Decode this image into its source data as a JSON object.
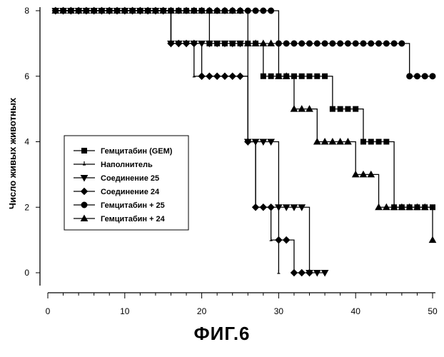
{
  "figure_caption": "ФИГ.6",
  "chart_data": {
    "type": "line",
    "ylabel": "Число живых животных",
    "xlabel": "",
    "xlim": [
      0,
      50
    ],
    "ylim": [
      0,
      8
    ],
    "x_ticks": [
      0,
      10,
      20,
      30,
      40,
      50
    ],
    "y_ticks": [
      0,
      2,
      4,
      6,
      8
    ],
    "grid": false,
    "legend_position": "middle-left",
    "series": [
      {
        "name": "Гемцитабин (GEM)",
        "marker": "square",
        "x": [
          1,
          2,
          3,
          4,
          5,
          6,
          7,
          8,
          9,
          10,
          11,
          12,
          13,
          14,
          15,
          16,
          17,
          18,
          19,
          20,
          21,
          22,
          23,
          24,
          25,
          26,
          27,
          28,
          29,
          30,
          31,
          32,
          33,
          34,
          35,
          36,
          37,
          38,
          39,
          40,
          41,
          42,
          43,
          44,
          45,
          46,
          47,
          48,
          49,
          50
        ],
        "y": [
          8,
          8,
          8,
          8,
          8,
          8,
          8,
          8,
          8,
          8,
          8,
          8,
          8,
          8,
          8,
          8,
          8,
          8,
          8,
          8,
          7,
          7,
          7,
          7,
          7,
          7,
          7,
          6,
          6,
          6,
          6,
          6,
          6,
          6,
          6,
          6,
          5,
          5,
          5,
          5,
          4,
          4,
          4,
          4,
          2,
          2,
          2,
          2,
          2,
          2
        ]
      },
      {
        "name": "Наполнитель",
        "marker": "tick",
        "x": [
          1,
          2,
          3,
          4,
          5,
          6,
          7,
          8,
          9,
          10,
          11,
          12,
          13,
          14,
          15,
          16,
          17,
          18,
          19,
          20,
          21,
          22,
          23,
          24,
          25,
          26,
          27,
          28,
          29,
          30
        ],
        "y": [
          8,
          8,
          8,
          8,
          8,
          8,
          8,
          8,
          8,
          8,
          8,
          8,
          8,
          8,
          8,
          7,
          7,
          7,
          6,
          6,
          6,
          6,
          6,
          6,
          6,
          4,
          2,
          2,
          1,
          0
        ]
      },
      {
        "name": "Соединение 25",
        "marker": "triangle-down",
        "x": [
          1,
          2,
          3,
          4,
          5,
          6,
          7,
          8,
          9,
          10,
          11,
          12,
          13,
          14,
          15,
          16,
          17,
          18,
          19,
          20,
          21,
          22,
          23,
          24,
          25,
          26,
          27,
          28,
          29,
          30,
          31,
          32,
          33,
          34,
          35,
          36
        ],
        "y": [
          8,
          8,
          8,
          8,
          8,
          8,
          8,
          8,
          8,
          8,
          8,
          8,
          8,
          8,
          8,
          7,
          7,
          7,
          7,
          7,
          7,
          7,
          7,
          7,
          7,
          4,
          4,
          4,
          4,
          2,
          2,
          2,
          2,
          0,
          0,
          0
        ]
      },
      {
        "name": "Соединение 24",
        "marker": "diamond",
        "x": [
          1,
          2,
          3,
          4,
          5,
          6,
          7,
          8,
          9,
          10,
          11,
          12,
          13,
          14,
          15,
          16,
          17,
          18,
          19,
          20,
          21,
          22,
          23,
          24,
          25,
          26,
          27,
          28,
          29,
          30,
          31,
          32,
          33,
          34
        ],
        "y": [
          8,
          8,
          8,
          8,
          8,
          8,
          8,
          8,
          8,
          8,
          8,
          8,
          8,
          8,
          8,
          7,
          7,
          7,
          7,
          6,
          6,
          6,
          6,
          6,
          6,
          4,
          2,
          2,
          2,
          1,
          1,
          0,
          0,
          0
        ]
      },
      {
        "name": "Гемцитабин + 25",
        "marker": "circle",
        "x": [
          1,
          2,
          3,
          4,
          5,
          6,
          7,
          8,
          9,
          10,
          11,
          12,
          13,
          14,
          15,
          16,
          17,
          18,
          19,
          20,
          21,
          22,
          23,
          24,
          25,
          26,
          27,
          28,
          29,
          30,
          31,
          32,
          33,
          34,
          35,
          36,
          37,
          38,
          39,
          40,
          41,
          42,
          43,
          44,
          45,
          46,
          47,
          48,
          49,
          50
        ],
        "y": [
          8,
          8,
          8,
          8,
          8,
          8,
          8,
          8,
          8,
          8,
          8,
          8,
          8,
          8,
          8,
          8,
          8,
          8,
          8,
          8,
          8,
          8,
          8,
          8,
          8,
          8,
          8,
          8,
          8,
          7,
          7,
          7,
          7,
          7,
          7,
          7,
          7,
          7,
          7,
          7,
          7,
          7,
          7,
          7,
          7,
          7,
          6,
          6,
          6,
          6
        ]
      },
      {
        "name": "Гемцитабин + 24",
        "marker": "triangle-up",
        "x": [
          1,
          2,
          3,
          4,
          5,
          6,
          7,
          8,
          9,
          10,
          11,
          12,
          13,
          14,
          15,
          16,
          17,
          18,
          19,
          20,
          21,
          22,
          23,
          24,
          25,
          26,
          27,
          28,
          29,
          30,
          31,
          32,
          33,
          34,
          35,
          36,
          37,
          38,
          39,
          40,
          41,
          42,
          43,
          44,
          45,
          46,
          47,
          48,
          49,
          50
        ],
        "y": [
          8,
          8,
          8,
          8,
          8,
          8,
          8,
          8,
          8,
          8,
          8,
          8,
          8,
          8,
          8,
          8,
          8,
          8,
          8,
          8,
          8,
          8,
          8,
          8,
          8,
          7,
          7,
          7,
          7,
          6,
          6,
          5,
          5,
          5,
          4,
          4,
          4,
          4,
          4,
          3,
          3,
          3,
          2,
          2,
          2,
          2,
          2,
          2,
          2,
          1
        ]
      }
    ]
  }
}
